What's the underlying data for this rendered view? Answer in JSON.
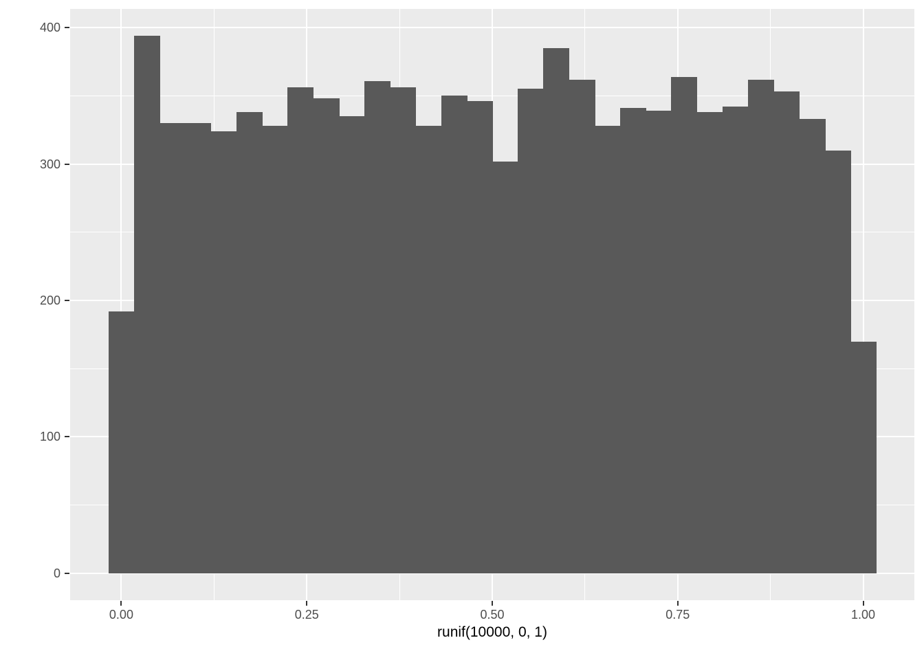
{
  "chart_data": {
    "type": "bar",
    "subtype": "histogram",
    "title": "",
    "xlabel": "runif(10000, 0, 1)",
    "ylabel": "",
    "n_total": 10000,
    "bins": 30,
    "bin_start": -0.017241,
    "bin_width": 0.034483,
    "counts": [
      192,
      394,
      330,
      330,
      324,
      338,
      328,
      356,
      348,
      335,
      361,
      356,
      328,
      350,
      346,
      302,
      355,
      385,
      362,
      328,
      341,
      339,
      364,
      338,
      342,
      362,
      353,
      333,
      310,
      170
    ],
    "x_axis": {
      "tick_labels": [
        "0.00",
        "0.25",
        "0.50",
        "0.75",
        "1.00"
      ],
      "tick_values": [
        0,
        0.25,
        0.5,
        0.75,
        1.0
      ],
      "minor_values": [
        0.125,
        0.375,
        0.625,
        0.875
      ],
      "lim": [
        -0.069,
        1.069
      ]
    },
    "y_axis": {
      "tick_labels": [
        "0",
        "100",
        "200",
        "300",
        "400"
      ],
      "tick_values": [
        0,
        100,
        200,
        300,
        400
      ],
      "minor_values": [
        50,
        150,
        250,
        350
      ],
      "lim": [
        -19.7,
        413.7
      ]
    },
    "grid": "on",
    "legend": "none",
    "colors": {
      "bar_fill": "#595959",
      "panel_background": "#EBEBEB",
      "gridline": "#FFFFFF",
      "tick_label": "#4D4D4D",
      "tick_mark": "#333333",
      "axis_title": "#000000",
      "outer_background": "#FFFFFF"
    }
  }
}
